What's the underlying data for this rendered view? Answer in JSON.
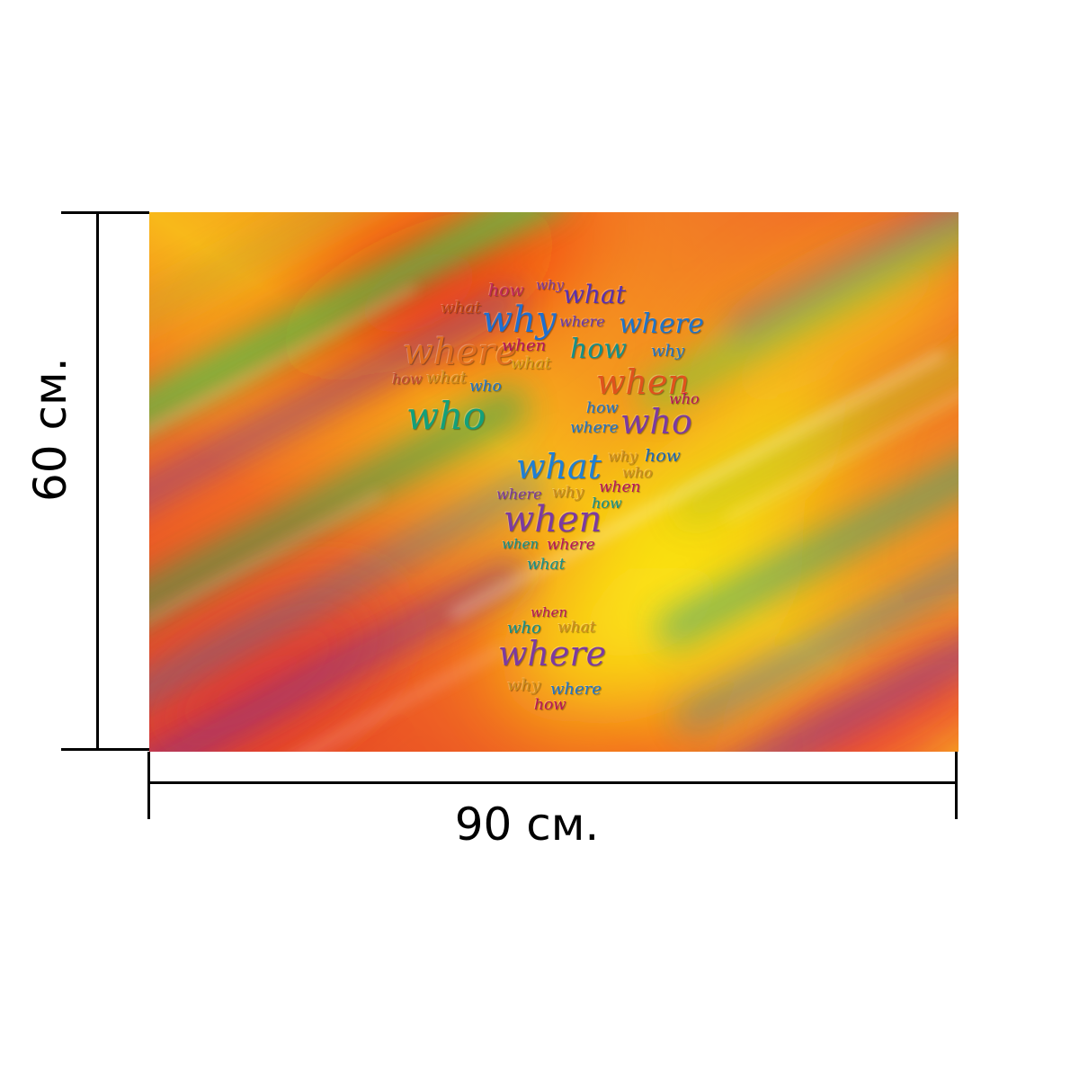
{
  "dimensions": {
    "height_label": "60 см.",
    "width_label": "90 см."
  },
  "artwork": {
    "colors": {
      "red": "#f21d0a",
      "orange": "#f5712a",
      "yellow": "#f7e609",
      "green": "#4fc14b",
      "purple": "#7a3e9d",
      "blue": "#2f7dc2"
    },
    "words": [
      {
        "text": "what",
        "color": "#c94b12"
      },
      {
        "text": "how",
        "color": "#c2265a"
      },
      {
        "text": "why",
        "color": "#7c3aa0"
      },
      {
        "text": "what",
        "color": "#5b2fb0"
      },
      {
        "text": "why",
        "color": "#1e6fd0"
      },
      {
        "text": "where",
        "color": "#6b3ab0"
      },
      {
        "text": "where",
        "color": "#1f74c9"
      },
      {
        "text": "where",
        "color": "#e06d1e"
      },
      {
        "text": "when",
        "color": "#b8145a"
      },
      {
        "text": "how",
        "color": "#12918a"
      },
      {
        "text": "why",
        "color": "#1f74c9"
      },
      {
        "text": "what",
        "color": "#d9a011"
      },
      {
        "text": "how",
        "color": "#c54b33"
      },
      {
        "text": "what",
        "color": "#d28f1a"
      },
      {
        "text": "who",
        "color": "#1f74c9"
      },
      {
        "text": "when",
        "color": "#e0531c"
      },
      {
        "text": "who",
        "color": "#b8145a"
      },
      {
        "text": "who",
        "color": "#13a07a"
      },
      {
        "text": "how",
        "color": "#1f74c9"
      },
      {
        "text": "who",
        "color": "#7c3aa0"
      },
      {
        "text": "where",
        "color": "#1f74c9"
      },
      {
        "text": "why",
        "color": "#d28f1a"
      },
      {
        "text": "how",
        "color": "#1a66b5"
      },
      {
        "text": "what",
        "color": "#1f7fd4"
      },
      {
        "text": "who",
        "color": "#d28f1a"
      },
      {
        "text": "where",
        "color": "#7c3aa0"
      },
      {
        "text": "why",
        "color": "#d28f1a"
      },
      {
        "text": "when",
        "color": "#b8145a"
      },
      {
        "text": "how",
        "color": "#12918a"
      },
      {
        "text": "when",
        "color": "#7c3aa0"
      },
      {
        "text": "when",
        "color": "#12918a"
      },
      {
        "text": "where",
        "color": "#b8145a"
      },
      {
        "text": "what",
        "color": "#12918a"
      },
      {
        "text": "when",
        "color": "#b8145a"
      },
      {
        "text": "who",
        "color": "#12918a"
      },
      {
        "text": "what",
        "color": "#d28f1a"
      },
      {
        "text": "where",
        "color": "#7c3aa0"
      },
      {
        "text": "why",
        "color": "#d28f1a"
      },
      {
        "text": "where",
        "color": "#1f74c9"
      },
      {
        "text": "how",
        "color": "#b8145a"
      }
    ]
  }
}
